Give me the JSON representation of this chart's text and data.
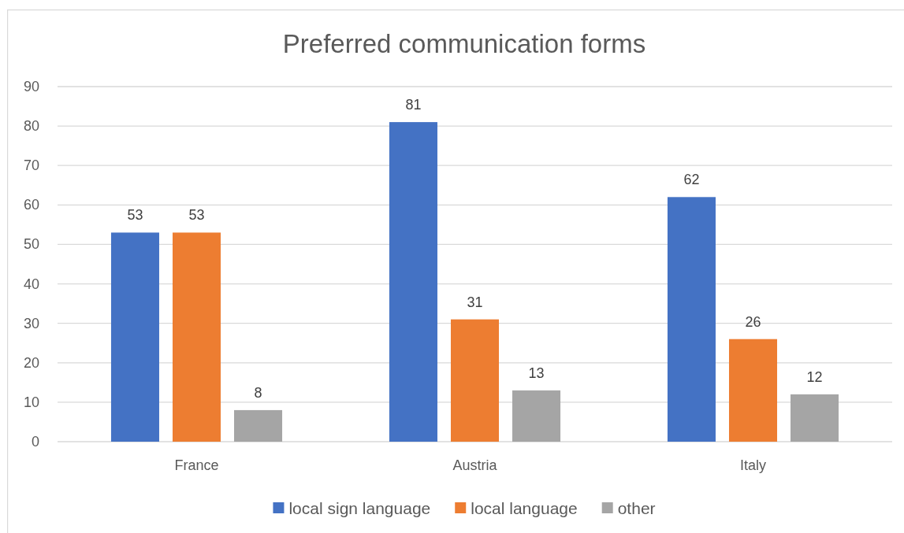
{
  "chart_data": {
    "type": "bar",
    "title": "Preferred communication forms",
    "categories": [
      "France",
      "Austria",
      "Italy"
    ],
    "series": [
      {
        "name": "local sign language",
        "color": "#4472c4",
        "values": [
          53,
          81,
          62
        ]
      },
      {
        "name": "local language",
        "color": "#ed7d31",
        "values": [
          53,
          31,
          26
        ]
      },
      {
        "name": "other",
        "color": "#a5a5a5",
        "values": [
          8,
          13,
          12
        ]
      }
    ],
    "ylim": [
      0,
      90
    ],
    "yticks": [
      0,
      10,
      20,
      30,
      40,
      50,
      60,
      70,
      80,
      90
    ],
    "grid": true,
    "legend": "bottom",
    "data_labels": true
  }
}
